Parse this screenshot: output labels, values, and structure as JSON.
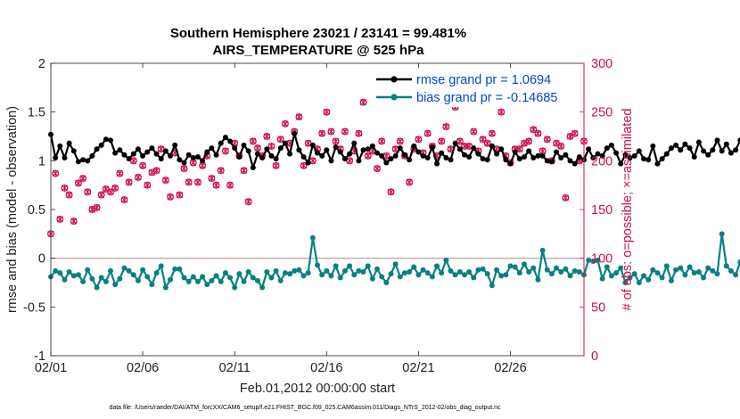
{
  "chart_data": {
    "type": "line",
    "title": "Southern Hemisphere 23021 / 23141 = 99.481%",
    "subtitle": "AIRS_TEMPERATURE @ 525 hPa",
    "xlabel": "Feb.01,2012 00:00:00 start",
    "ylabel": "rmse and bias (model - observation)",
    "y2label": "# of obs: o=possible; ×=assimilated",
    "xlim": [
      0,
      29
    ],
    "ylim": [
      -1,
      2
    ],
    "y2lim": [
      0,
      300
    ],
    "x_ticks": [
      {
        "value": 0,
        "label": "02/01"
      },
      {
        "value": 5,
        "label": "02/06"
      },
      {
        "value": 10,
        "label": "02/11"
      },
      {
        "value": 15,
        "label": "02/16"
      },
      {
        "value": 20,
        "label": "02/21"
      },
      {
        "value": 25,
        "label": "02/26"
      }
    ],
    "y_ticks": [
      {
        "value": -1,
        "label": "-1"
      },
      {
        "value": -0.5,
        "label": "-0.5"
      },
      {
        "value": 0,
        "label": "0"
      },
      {
        "value": 0.5,
        "label": "0.5"
      },
      {
        "value": 1,
        "label": "1"
      },
      {
        "value": 1.5,
        "label": "1.5"
      },
      {
        "value": 2,
        "label": "2"
      }
    ],
    "y2_ticks": [
      {
        "value": 0,
        "label": "0"
      },
      {
        "value": 50,
        "label": "50"
      },
      {
        "value": 100,
        "label": "100"
      },
      {
        "value": 150,
        "label": "150"
      },
      {
        "value": 200,
        "label": "200"
      },
      {
        "value": 250,
        "label": "250"
      },
      {
        "value": 300,
        "label": "300"
      }
    ],
    "colors": {
      "rmse": "#000000",
      "bias": "#0a8080",
      "obs": "#d0104c",
      "legend_text": "#0047d6",
      "zero_line": "#c8a8a8"
    },
    "series": [
      {
        "name": "rmse grand pr = 1.0694",
        "key": "rmse",
        "x_start": 0,
        "x_step": 0.25,
        "values": [
          1.27,
          1.03,
          1.15,
          1.03,
          1.18,
          1.1,
          0.99,
          1.01,
          1.0,
          1.05,
          1.12,
          1.16,
          1.22,
          1.21,
          1.08,
          1.11,
          1.06,
          1.02,
          1.07,
          1.12,
          1.05,
          1.09,
          1.13,
          1.07,
          1.02,
          1.1,
          1.05,
          1.16,
          1.01,
          0.98,
          1.06,
          1.03,
          1.04,
          1.0,
          1.09,
          1.13,
          1.06,
          1.18,
          1.24,
          1.2,
          1.13,
          1.04,
          1.16,
          1.1,
          0.93,
          1.07,
          1.03,
          1.12,
          1.05,
          1.02,
          1.13,
          1.18,
          1.07,
          1.28,
          1.11,
          1.04,
          0.98,
          1.16,
          1.08,
          1.05,
          1.11,
          1.0,
          1.14,
          1.09,
          1.02,
          1.07,
          1.18,
          1.0,
          1.11,
          1.12,
          1.15,
          1.08,
          1.05,
          0.98,
          1.02,
          1.05,
          1.13,
          1.06,
          1.01,
          1.15,
          1.09,
          1.05,
          1.03,
          1.14,
          0.97,
          1.08,
          1.03,
          1.01,
          1.18,
          1.12,
          1.06,
          1.04,
          1.13,
          1.07,
          1.02,
          1.01,
          1.15,
          1.07,
          1.12,
          1.01,
          0.97,
          1.09,
          1.02,
          1.04,
          1.1,
          1.03,
          1.05,
          1.05,
          1.0,
          0.99,
          1.09,
          1.03,
          1.06,
          1.0,
          0.97,
          1.04,
          1.01,
          1.12,
          1.03,
          1.07,
          1.05,
          1.13,
          1.16,
          1.08,
          0.97,
          1.06,
          1.03,
          1.05,
          1.1,
          1.02,
          1.01,
          1.15,
          0.97,
          1.02,
          1.07,
          1.13,
          1.16,
          1.11,
          1.17,
          1.13,
          1.04,
          1.19,
          1.1,
          1.06,
          1.11,
          1.21,
          1.1,
          1.17,
          1.08,
          1.11,
          1.21,
          1.09,
          1.06,
          1.16,
          1.13,
          1.05,
          1.06,
          1.35
        ]
      },
      {
        "name": "bias grand pr = -0.14685",
        "key": "bias",
        "x_start": 0,
        "x_step": 0.25,
        "values": [
          -0.19,
          -0.13,
          -0.15,
          -0.22,
          -0.14,
          -0.18,
          -0.17,
          -0.24,
          -0.12,
          -0.21,
          -0.3,
          -0.2,
          -0.24,
          -0.13,
          -0.27,
          -0.21,
          -0.1,
          -0.13,
          -0.17,
          -0.23,
          -0.12,
          -0.19,
          -0.27,
          -0.15,
          -0.08,
          -0.3,
          -0.22,
          -0.11,
          -0.11,
          -0.2,
          -0.24,
          -0.19,
          -0.24,
          -0.19,
          -0.27,
          -0.23,
          -0.18,
          -0.24,
          -0.15,
          -0.2,
          -0.3,
          -0.16,
          -0.24,
          -0.14,
          -0.2,
          -0.23,
          -0.3,
          -0.14,
          -0.2,
          -0.13,
          -0.23,
          -0.15,
          -0.16,
          -0.13,
          -0.12,
          -0.18,
          -0.15,
          0.21,
          -0.07,
          -0.17,
          -0.13,
          -0.18,
          -0.08,
          -0.2,
          -0.13,
          -0.08,
          -0.17,
          -0.13,
          -0.14,
          -0.08,
          -0.21,
          -0.11,
          -0.19,
          -0.25,
          -0.16,
          -0.06,
          -0.19,
          -0.15,
          -0.14,
          -0.09,
          -0.17,
          -0.12,
          -0.15,
          -0.19,
          -0.08,
          -0.15,
          -0.02,
          -0.13,
          -0.17,
          -0.14,
          -0.17,
          -0.14,
          -0.2,
          -0.12,
          -0.11,
          -0.16,
          -0.28,
          -0.12,
          -0.18,
          -0.17,
          -0.08,
          -0.09,
          -0.15,
          -0.06,
          -0.14,
          -0.1,
          -0.22,
          0.08,
          -0.12,
          -0.16,
          -0.1,
          -0.14,
          -0.11,
          -0.18,
          -0.13,
          -0.14,
          -0.17,
          -0.02,
          -0.03,
          -0.02,
          -0.21,
          -0.09,
          -0.18,
          -0.15,
          -0.1,
          -0.25,
          -0.2,
          -0.16,
          -0.25,
          -0.18,
          -0.22,
          -0.12,
          -0.15,
          -0.2,
          -0.08,
          -0.23,
          -0.12,
          -0.1,
          -0.17,
          -0.09,
          -0.15,
          -0.14,
          -0.2,
          -0.1,
          -0.13,
          -0.16,
          0.25,
          -0.08,
          -0.13,
          -0.17,
          -0.04,
          -0.08,
          -0.2,
          -0.09,
          -0.3,
          -0.14,
          -0.22,
          -0.12,
          -0.15,
          -0.17,
          -0.14,
          -0.04,
          -0.03
        ]
      },
      {
        "name": "# of obs (possible/assimilated)",
        "key": "obs",
        "points": [
          [
            0.0,
            125
          ],
          [
            0.25,
            187
          ],
          [
            0.5,
            140
          ],
          [
            0.75,
            172
          ],
          [
            1.0,
            165
          ],
          [
            1.25,
            138
          ],
          [
            1.5,
            177
          ],
          [
            1.75,
            182
          ],
          [
            2.0,
            168
          ],
          [
            2.25,
            150
          ],
          [
            2.5,
            152
          ],
          [
            2.75,
            165
          ],
          [
            3.0,
            171
          ],
          [
            3.25,
            168
          ],
          [
            3.5,
            172
          ],
          [
            3.75,
            187
          ],
          [
            4.0,
            160
          ],
          [
            4.25,
            178
          ],
          [
            4.5,
            200
          ],
          [
            4.75,
            183
          ],
          [
            5.0,
            195
          ],
          [
            5.25,
            175
          ],
          [
            5.5,
            188
          ],
          [
            5.75,
            190
          ],
          [
            6.0,
            212
          ],
          [
            6.25,
            180
          ],
          [
            6.5,
            163
          ],
          [
            6.75,
            208
          ],
          [
            7.0,
            165
          ],
          [
            7.25,
            192
          ],
          [
            7.5,
            178
          ],
          [
            7.75,
            198
          ],
          [
            8.0,
            178
          ],
          [
            8.25,
            195
          ],
          [
            8.5,
            205
          ],
          [
            8.75,
            182
          ],
          [
            9.0,
            175
          ],
          [
            9.25,
            190
          ],
          [
            9.5,
            210
          ],
          [
            9.75,
            175
          ],
          [
            10.0,
            218
          ],
          [
            10.25,
            205
          ],
          [
            10.5,
            190
          ],
          [
            10.75,
            158
          ],
          [
            11.0,
            220
          ],
          [
            11.25,
            213
          ],
          [
            11.5,
            205
          ],
          [
            11.75,
            225
          ],
          [
            12.0,
            215
          ],
          [
            12.25,
            195
          ],
          [
            12.5,
            222
          ],
          [
            12.75,
            238
          ],
          [
            13.0,
            218
          ],
          [
            13.25,
            230
          ],
          [
            13.5,
            245
          ],
          [
            13.75,
            195
          ],
          [
            14.0,
            218
          ],
          [
            14.25,
            200
          ],
          [
            14.5,
            212
          ],
          [
            14.75,
            228
          ],
          [
            15.0,
            250
          ],
          [
            15.25,
            230
          ],
          [
            15.5,
            220
          ],
          [
            15.75,
            212
          ],
          [
            16.0,
            230
          ],
          [
            16.25,
            200
          ],
          [
            16.5,
            210
          ],
          [
            16.75,
            228
          ],
          [
            17.0,
            260
          ],
          [
            17.25,
            205
          ],
          [
            17.5,
            210
          ],
          [
            17.75,
            192
          ],
          [
            18.0,
            220
          ],
          [
            18.25,
            205
          ],
          [
            18.5,
            168
          ],
          [
            18.75,
            212
          ],
          [
            19.0,
            220
          ],
          [
            19.25,
            205
          ],
          [
            19.5,
            178
          ],
          [
            19.75,
            212
          ],
          [
            20.0,
            222
          ],
          [
            20.25,
            208
          ],
          [
            20.5,
            228
          ],
          [
            20.75,
            215
          ],
          [
            21.0,
            205
          ],
          [
            21.25,
            220
          ],
          [
            21.5,
            235
          ],
          [
            21.75,
            212
          ],
          [
            22.0,
            255
          ],
          [
            22.25,
            220
          ],
          [
            22.5,
            215
          ],
          [
            22.75,
            215
          ],
          [
            23.0,
            230
          ],
          [
            23.25,
            210
          ],
          [
            23.5,
            222
          ],
          [
            23.75,
            218
          ],
          [
            24.0,
            228
          ],
          [
            24.25,
            212
          ],
          [
            24.5,
            250
          ],
          [
            24.75,
            205
          ],
          [
            25.0,
            198
          ],
          [
            25.25,
            212
          ],
          [
            25.5,
            212
          ],
          [
            25.75,
            218
          ],
          [
            26.0,
            220
          ],
          [
            26.25,
            232
          ],
          [
            26.5,
            228
          ],
          [
            26.75,
            210
          ],
          [
            27.0,
            222
          ],
          [
            27.25,
            200
          ],
          [
            27.5,
            218
          ],
          [
            27.75,
            215
          ],
          [
            28.0,
            162
          ],
          [
            28.25,
            225
          ],
          [
            28.5,
            228
          ],
          [
            28.75,
            200
          ],
          [
            29.0,
            220
          ]
        ]
      }
    ],
    "legend": [
      {
        "label": "rmse grand pr = 1.0694",
        "color_key": "rmse"
      },
      {
        "label": "bias grand pr = -0.14685",
        "color_key": "bias"
      }
    ],
    "legend_position": "top-right",
    "grid": false
  },
  "footnote": "data file: /Users/raeder/DAI/ATM_forcXX/CAM6_setup/f.e21.FHIST_BGC.f09_025.CAM6assim.011/Diags_NTrS_2012-02/obs_diag_output.nc"
}
